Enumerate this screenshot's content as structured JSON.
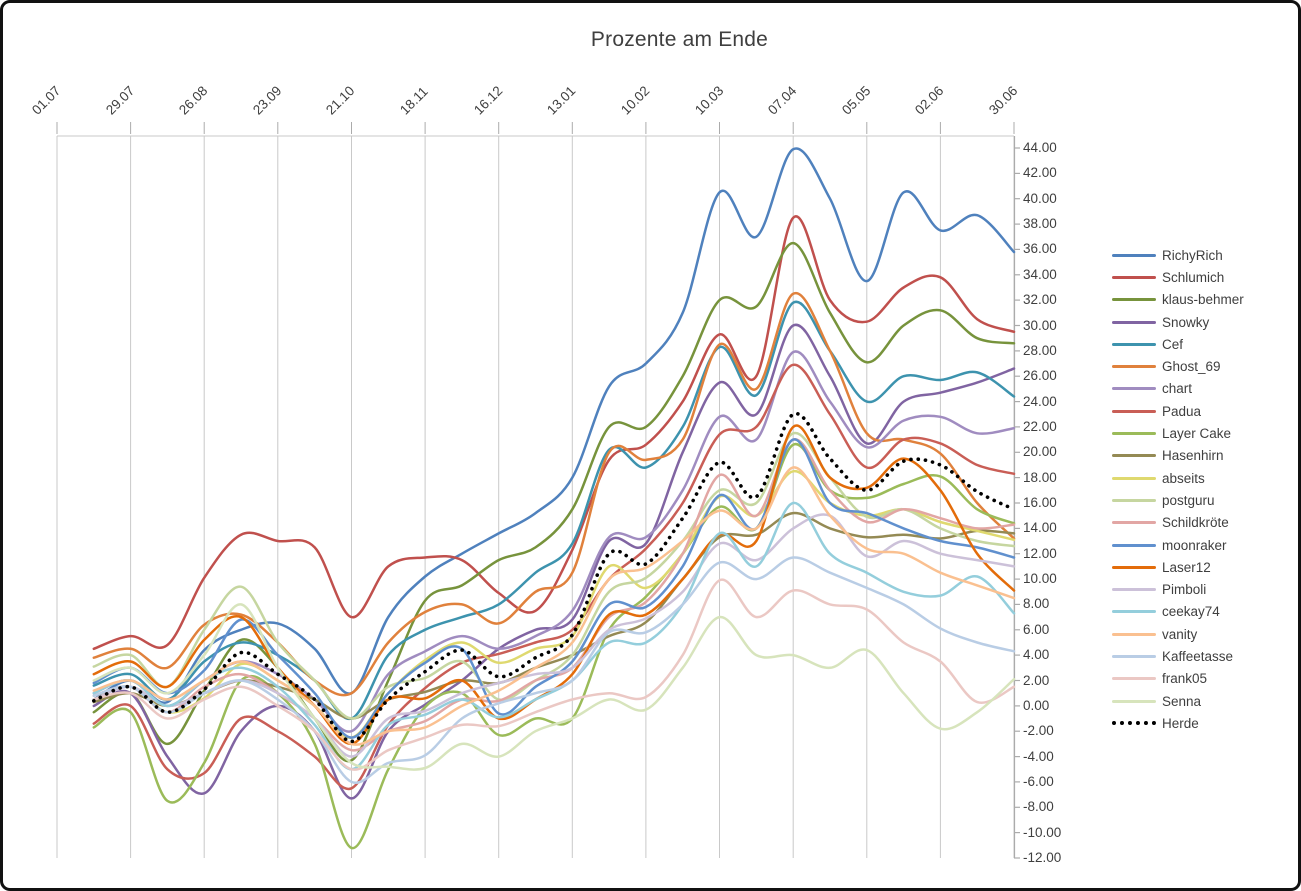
{
  "chart_data": {
    "type": "line",
    "title": "Prozente am Ende",
    "legend_position": "right",
    "grid": "vertical-only",
    "smooth_lines": true,
    "x_tick_labels": [
      "01.07",
      "29.07",
      "26.08",
      "23.09",
      "21.10",
      "18.11",
      "16.12",
      "13.01",
      "10.02",
      "10.03",
      "07.04",
      "05.05",
      "02.06",
      "30.06"
    ],
    "x_tick_weeks": [
      0,
      4,
      8,
      12,
      16,
      20,
      24,
      28,
      32,
      36,
      40,
      44,
      48,
      52
    ],
    "x_total_weeks": 52,
    "ylim": [
      -12,
      44
    ],
    "y_step": 2,
    "y_tick_labels": [
      "44.00",
      "42.00",
      "40.00",
      "38.00",
      "36.00",
      "34.00",
      "32.00",
      "30.00",
      "28.00",
      "26.00",
      "24.00",
      "22.00",
      "20.00",
      "18.00",
      "16.00",
      "14.00",
      "12.00",
      "10.00",
      "8.00",
      "6.00",
      "4.00",
      "2.00",
      "0.00",
      "-2.00",
      "-4.00",
      "-6.00",
      "-8.00",
      "-10.00",
      "-12.00"
    ],
    "sample_weeks": [
      2,
      4,
      6,
      8,
      10,
      12,
      14,
      16,
      18,
      20,
      22,
      24,
      26,
      28,
      30,
      32,
      34,
      36,
      38,
      40,
      42,
      44,
      46,
      48,
      50,
      52
    ],
    "series": [
      {
        "name": "RichyRich",
        "color": "#4F81BD",
        "style": "solid",
        "values": [
          0.5,
          2.0,
          0.3,
          4.4,
          6.0,
          6.5,
          4.5,
          1.0,
          7.0,
          10.2,
          12.0,
          13.6,
          15.2,
          18.0,
          25.2,
          27.0,
          31.0,
          40.5,
          37.0,
          43.9,
          40.0,
          33.5,
          40.5,
          37.5,
          38.7,
          35.8
        ]
      },
      {
        "name": "Schlumich",
        "color": "#C0504D",
        "style": "solid",
        "values": [
          4.5,
          5.5,
          4.8,
          10.1,
          13.5,
          13.0,
          12.5,
          7.0,
          11.0,
          11.7,
          11.5,
          8.9,
          7.5,
          12.3,
          19.4,
          20.6,
          24.0,
          29.3,
          26.0,
          38.5,
          32.0,
          30.3,
          33.0,
          33.8,
          30.5,
          29.5
        ]
      },
      {
        "name": "klaus-behmer",
        "color": "#77933C",
        "style": "solid",
        "values": [
          -0.5,
          1.0,
          -3.0,
          1.2,
          5.2,
          3.0,
          -1.0,
          -4.3,
          2.0,
          8.3,
          9.5,
          11.5,
          12.5,
          15.5,
          22.0,
          22.0,
          26.0,
          32.0,
          31.5,
          36.5,
          31.0,
          27.1,
          30.0,
          31.2,
          29.0,
          28.6
        ]
      },
      {
        "name": "Snowky",
        "color": "#8064A2",
        "style": "solid",
        "values": [
          0.0,
          1.0,
          -4.0,
          -6.9,
          -2.0,
          0.0,
          -2.0,
          -7.3,
          -2.0,
          0.1,
          2.0,
          4.5,
          6.0,
          6.8,
          13.0,
          12.8,
          20.0,
          25.5,
          23.0,
          30.0,
          26.0,
          20.7,
          24.0,
          24.7,
          25.5,
          26.6
        ]
      },
      {
        "name": "Cef",
        "color": "#3D93AE",
        "style": "solid",
        "values": [
          1.6,
          2.5,
          0.5,
          3.5,
          5.0,
          4.0,
          2.0,
          -1.0,
          4.0,
          6.0,
          7.0,
          8.0,
          10.5,
          12.8,
          20.2,
          18.8,
          22.0,
          28.3,
          24.5,
          31.8,
          28.0,
          24.0,
          26.0,
          25.7,
          26.3,
          24.4
        ]
      },
      {
        "name": "Ghost_69",
        "color": "#E0813C",
        "style": "solid",
        "values": [
          3.8,
          4.5,
          3.0,
          6.4,
          7.2,
          5.0,
          2.0,
          1.0,
          5.0,
          7.4,
          8.0,
          6.5,
          9.0,
          10.5,
          20.0,
          19.4,
          21.0,
          28.5,
          25.0,
          32.5,
          28.0,
          21.5,
          21.0,
          19.9,
          16.0,
          13.2
        ]
      },
      {
        "name": "chart",
        "color": "#A08CC0",
        "style": "solid",
        "values": [
          1.0,
          2.0,
          0.0,
          2.0,
          3.5,
          2.5,
          0.5,
          -2.0,
          2.5,
          4.3,
          5.5,
          4.5,
          5.5,
          7.5,
          13.3,
          13.3,
          17.0,
          22.8,
          21.0,
          27.9,
          24.0,
          20.4,
          22.5,
          22.8,
          21.5,
          21.9
        ]
      },
      {
        "name": "Padua",
        "color": "#C95E56",
        "style": "solid",
        "values": [
          -1.4,
          0.0,
          -5.0,
          -5.3,
          -1.0,
          -2.0,
          -4.0,
          -6.5,
          -1.5,
          1.4,
          3.4,
          4.1,
          5.0,
          6.0,
          10.0,
          12.4,
          16.0,
          21.4,
          22.0,
          26.9,
          23.0,
          18.8,
          21.0,
          20.7,
          19.0,
          18.3
        ]
      },
      {
        "name": "Layer Cake",
        "color": "#9BBB59",
        "style": "solid",
        "values": [
          -1.7,
          -0.5,
          -7.5,
          -4.5,
          2.0,
          1.0,
          -3.0,
          -11.2,
          -5.0,
          -0.1,
          1.0,
          -2.3,
          -1.0,
          -1.0,
          6.0,
          8.6,
          12.0,
          15.7,
          14.0,
          20.6,
          17.0,
          16.4,
          17.5,
          18.1,
          15.5,
          14.4
        ]
      },
      {
        "name": "Hasenhirn",
        "color": "#948A54",
        "style": "solid",
        "values": [
          0.3,
          1.0,
          0.0,
          1.0,
          2.0,
          1.5,
          0.5,
          -1.0,
          0.5,
          1.1,
          2.0,
          1.8,
          3.0,
          4.0,
          5.5,
          6.6,
          10.0,
          13.3,
          13.5,
          15.2,
          14.0,
          13.3,
          13.5,
          13.2,
          13.8,
          13.6
        ]
      },
      {
        "name": "abseits",
        "color": "#DFD96F",
        "style": "solid",
        "values": [
          0.5,
          1.5,
          -0.5,
          0.6,
          3.3,
          2.0,
          0.0,
          -2.5,
          1.0,
          3.6,
          5.0,
          3.4,
          4.5,
          5.5,
          11.0,
          9.3,
          12.0,
          16.5,
          15.0,
          18.5,
          16.0,
          15.0,
          15.5,
          14.5,
          13.8,
          13.1
        ]
      },
      {
        "name": "postguru",
        "color": "#C6D6A0",
        "style": "solid",
        "values": [
          3.1,
          4.0,
          1.5,
          6.0,
          9.4,
          5.0,
          2.0,
          -1.0,
          1.5,
          2.2,
          3.5,
          0.5,
          2.0,
          4.0,
          9.0,
          10.1,
          13.0,
          17.0,
          16.0,
          21.5,
          18.0,
          14.9,
          15.5,
          14.0,
          13.0,
          12.6
        ]
      },
      {
        "name": "Schildkröte",
        "color": "#E2A6A4",
        "style": "solid",
        "values": [
          0.8,
          1.5,
          -0.5,
          1.5,
          2.5,
          1.0,
          -1.0,
          -3.5,
          -2.0,
          -1.2,
          0.5,
          0.4,
          2.0,
          3.0,
          7.0,
          8.2,
          12.0,
          18.2,
          15.0,
          21.0,
          17.0,
          14.5,
          15.5,
          14.8,
          14.0,
          14.3
        ]
      },
      {
        "name": "moonraker",
        "color": "#6090CE",
        "style": "solid",
        "values": [
          1.8,
          3.0,
          1.0,
          2.8,
          6.8,
          4.0,
          1.0,
          -2.5,
          1.0,
          3.4,
          4.5,
          -0.6,
          1.5,
          3.5,
          8.0,
          7.8,
          11.0,
          16.6,
          14.0,
          21.0,
          16.0,
          15.2,
          14.0,
          13.0,
          12.5,
          11.7
        ]
      },
      {
        "name": "Laser12",
        "color": "#E36C0A",
        "style": "solid",
        "values": [
          2.5,
          3.5,
          1.5,
          5.2,
          7.0,
          3.0,
          0.0,
          -3.0,
          0.5,
          0.6,
          2.0,
          -1.0,
          0.5,
          2.5,
          7.2,
          7.2,
          10.0,
          13.5,
          13.0,
          22.0,
          18.0,
          17.2,
          19.5,
          17.0,
          12.0,
          9.1
        ]
      },
      {
        "name": "Pimboli",
        "color": "#CCC1D9",
        "style": "solid",
        "values": [
          0.5,
          1.5,
          0.0,
          1.0,
          2.0,
          1.0,
          -1.0,
          -4.0,
          -1.0,
          -0.4,
          1.0,
          1.8,
          2.5,
          3.0,
          6.0,
          6.9,
          9.0,
          12.8,
          11.5,
          14.0,
          15.0,
          11.8,
          13.0,
          12.0,
          11.5,
          11.0
        ]
      },
      {
        "name": "ceekay74",
        "color": "#94CEDC",
        "style": "solid",
        "values": [
          1.0,
          2.0,
          0.0,
          2.0,
          3.0,
          1.5,
          -1.5,
          -5.0,
          -1.5,
          -0.7,
          0.5,
          -0.9,
          0.5,
          2.0,
          5.0,
          5.0,
          8.0,
          13.6,
          11.0,
          16.0,
          12.0,
          10.5,
          9.0,
          8.7,
          10.2,
          7.3
        ]
      },
      {
        "name": "vanity",
        "color": "#FAC090",
        "style": "solid",
        "values": [
          1.2,
          2.0,
          0.5,
          2.0,
          3.5,
          2.0,
          0.0,
          -3.0,
          -2.0,
          -1.7,
          0.0,
          1.2,
          3.0,
          5.0,
          10.0,
          10.9,
          13.0,
          15.4,
          14.0,
          18.8,
          15.0,
          12.4,
          12.0,
          10.5,
          9.5,
          8.5
        ]
      },
      {
        "name": "Kaffeetasse",
        "color": "#B9CDE5",
        "style": "solid",
        "values": [
          0.8,
          1.5,
          -0.5,
          1.0,
          2.0,
          0.5,
          -2.0,
          -6.0,
          -4.5,
          -3.9,
          -1.0,
          0.2,
          1.0,
          2.0,
          5.8,
          5.8,
          8.0,
          11.3,
          10.0,
          11.7,
          10.5,
          9.3,
          8.0,
          6.1,
          5.0,
          4.3
        ]
      },
      {
        "name": "frank05",
        "color": "#EBC8C4",
        "style": "solid",
        "values": [
          0.5,
          1.0,
          -1.0,
          0.5,
          1.5,
          0.0,
          -2.0,
          -5.0,
          -3.5,
          -2.5,
          -1.5,
          -1.6,
          -0.5,
          0.5,
          1.0,
          0.7,
          4.0,
          9.9,
          7.0,
          9.1,
          8.0,
          7.6,
          5.0,
          3.5,
          0.3,
          1.5
        ]
      },
      {
        "name": "Senna",
        "color": "#D7E4BC",
        "style": "solid",
        "values": [
          2.0,
          3.0,
          1.0,
          4.0,
          8.0,
          3.0,
          -1.0,
          -4.5,
          -4.8,
          -4.9,
          -3.0,
          -4.0,
          -2.0,
          -1.0,
          0.5,
          -0.3,
          3.0,
          7.0,
          4.0,
          4.0,
          3.0,
          4.4,
          1.0,
          -1.8,
          -0.5,
          2.1
        ]
      },
      {
        "name": "Herde",
        "color": "#000000",
        "style": "dotted",
        "values": [
          0.4,
          1.5,
          -0.5,
          1.3,
          4.2,
          2.5,
          0.5,
          -2.8,
          0.5,
          2.7,
          4.4,
          2.3,
          3.8,
          5.6,
          12.0,
          11.2,
          14.8,
          19.2,
          16.5,
          23.0,
          19.5,
          17.0,
          19.3,
          19.0,
          16.9,
          15.5
        ]
      }
    ]
  }
}
